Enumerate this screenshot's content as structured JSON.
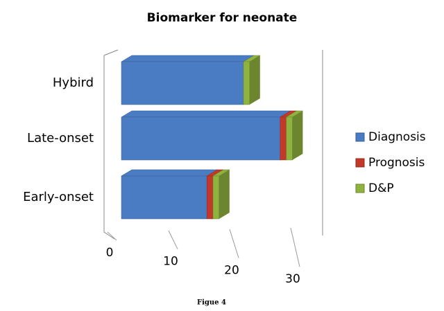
{
  "chart_data": {
    "type": "bar3d",
    "title": "Biomarker for neonate",
    "caption": "Figue 4",
    "categories": [
      "Early-onset",
      "Late-onset",
      "Hybird"
    ],
    "series": [
      {
        "name": "Diagnosis",
        "color": "#4a7cc4",
        "values": [
          14,
          26,
          20
        ]
      },
      {
        "name": "Prognosis",
        "color": "#c0392b",
        "values": [
          1,
          1,
          0
        ]
      },
      {
        "name": "D&P",
        "color": "#8fb33f",
        "values": [
          1,
          1,
          1
        ]
      }
    ],
    "xlim": [
      0,
      30
    ],
    "xticks": [
      0,
      10,
      20,
      30
    ],
    "grid": true,
    "legend": "right"
  }
}
